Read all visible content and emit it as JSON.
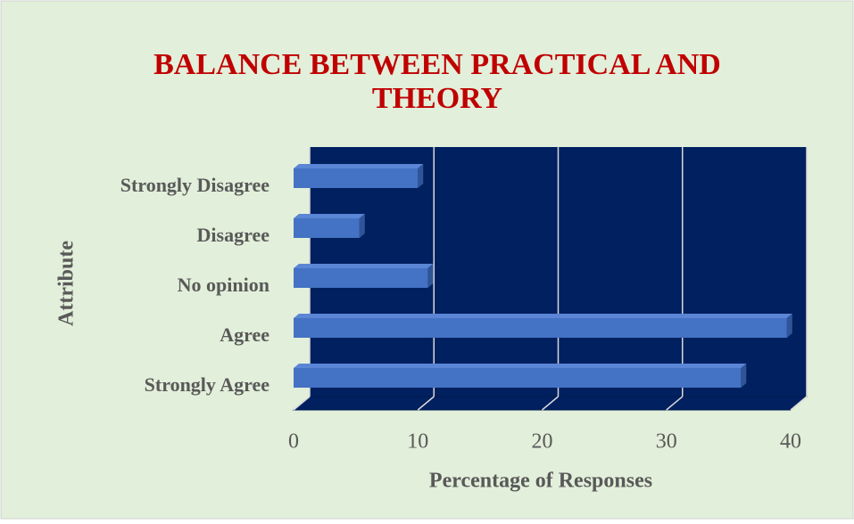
{
  "chart_data": {
    "type": "bar3d_horizontal",
    "title": [
      "BALANCE BETWEEN PRACTICAL AND",
      "THEORY"
    ],
    "categories": [
      "Strongly Disagree",
      "Disagree",
      "No opinion",
      "Agree",
      "Strongly Agree"
    ],
    "values": [
      10,
      5.3,
      10.8,
      39.7,
      36
    ],
    "color": "#4472c4",
    "xlim": [
      0,
      40
    ],
    "xticks": [
      0,
      10,
      20,
      30,
      40
    ],
    "xlabel": "Percentage of Responses",
    "ylabel": "Attribute",
    "grid": true
  }
}
